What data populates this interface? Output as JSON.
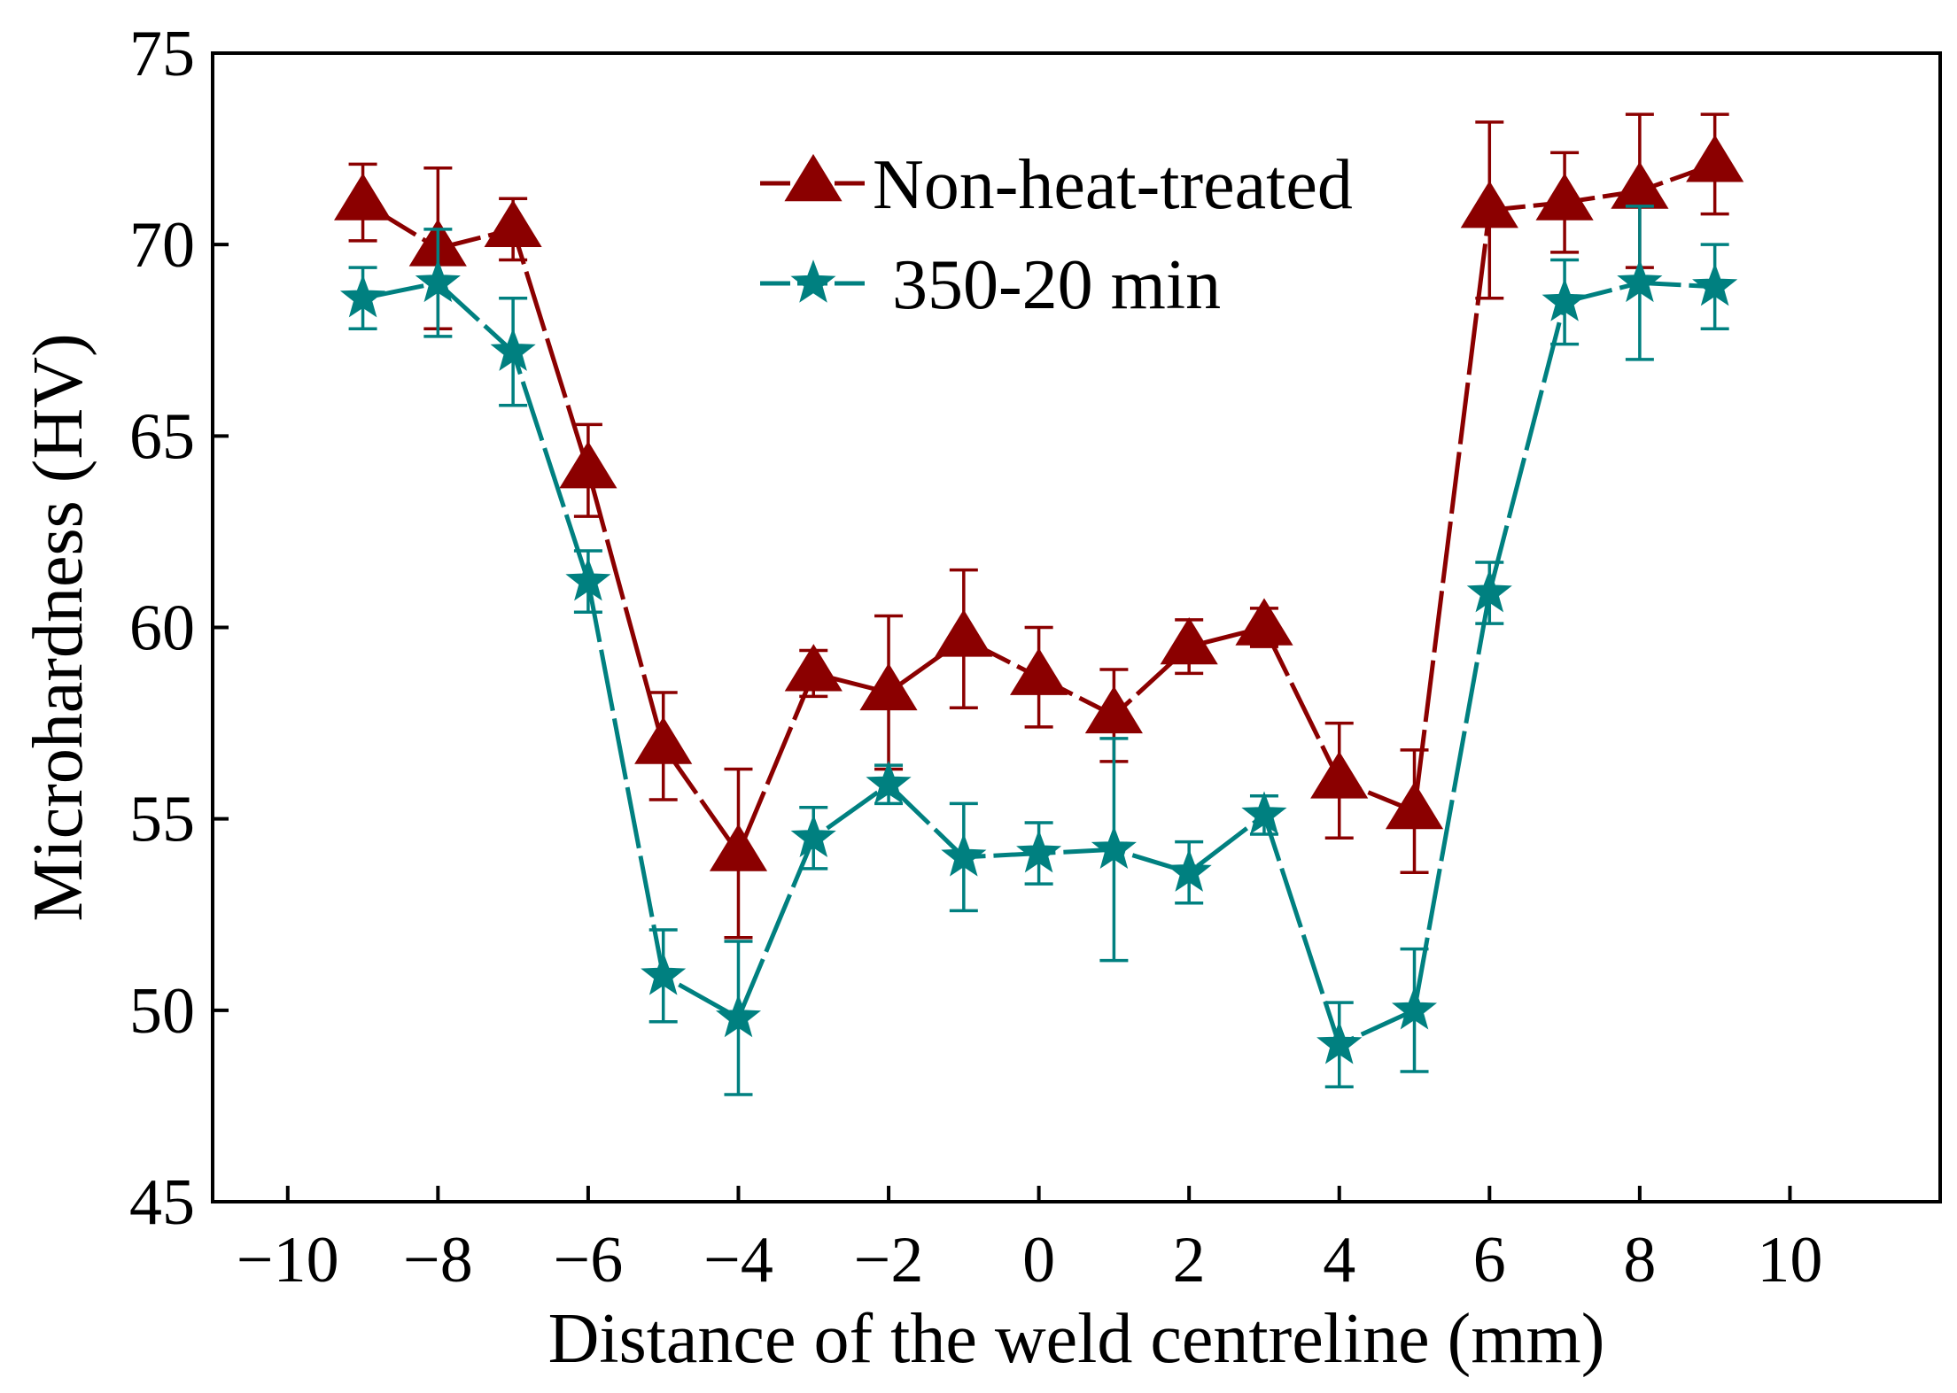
{
  "chart_data": {
    "type": "line",
    "title": "",
    "xlabel": "Distance of the weld centreline (mm)",
    "ylabel": "Microhardness (HV)",
    "xlim": [
      -11,
      12
    ],
    "ylim": [
      45,
      75
    ],
    "xticks": [
      -10,
      -8,
      -6,
      -4,
      -2,
      0,
      2,
      4,
      6,
      8,
      10
    ],
    "xtick_labels": [
      "−10",
      "−8",
      "−6",
      "−4",
      "−2",
      "0",
      "2",
      "4",
      "6",
      "8",
      "10"
    ],
    "yticks": [
      45,
      50,
      55,
      60,
      65,
      70,
      75
    ],
    "ytick_labels": [
      "45",
      "50",
      "55",
      "60",
      "65",
      "70",
      "75"
    ],
    "grid": false,
    "legend_position": "top-center",
    "x": [
      -9,
      -8,
      -7,
      -6,
      -5,
      -4,
      -3,
      -2,
      -1,
      0,
      1,
      2,
      3,
      4,
      5,
      6,
      7,
      8,
      9
    ],
    "series": [
      {
        "name": "Non-heat-treated",
        "color": "#8b0000",
        "marker": "triangle",
        "values": [
          71.1,
          69.9,
          70.4,
          64.1,
          56.9,
          54.1,
          58.8,
          58.3,
          59.7,
          58.7,
          57.7,
          59.5,
          60.0,
          56.0,
          55.2,
          70.9,
          71.1,
          71.4,
          72.1
        ],
        "errors": [
          1.0,
          2.1,
          0.8,
          1.2,
          1.4,
          2.2,
          0.6,
          2.0,
          1.8,
          1.3,
          1.2,
          0.7,
          0.5,
          1.5,
          1.6,
          2.3,
          1.3,
          2.0,
          1.3
        ]
      },
      {
        "name": "350-20 min",
        "color": "#008080",
        "marker": "star",
        "values": [
          68.6,
          69.0,
          67.2,
          61.2,
          50.9,
          49.8,
          54.5,
          55.9,
          54.0,
          54.1,
          54.2,
          53.6,
          55.1,
          49.1,
          50.0,
          60.9,
          68.5,
          69.0,
          68.9
        ],
        "errors": [
          0.8,
          1.4,
          1.4,
          0.8,
          1.2,
          2.0,
          0.8,
          0.5,
          1.4,
          0.8,
          2.9,
          0.8,
          0.5,
          1.1,
          1.6,
          0.8,
          1.1,
          2.0,
          1.1
        ]
      }
    ]
  }
}
